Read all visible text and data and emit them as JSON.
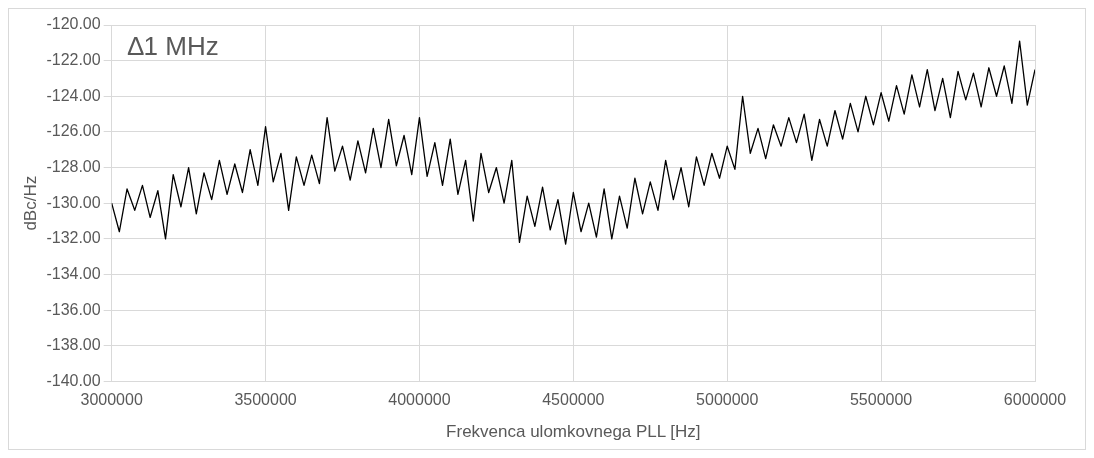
{
  "chart_data": {
    "type": "line",
    "xlabel": "Frekvenca ulomkovnega PLL [Hz]",
    "ylabel": "dBc/Hz",
    "annotations": [
      "∆1 MHz"
    ],
    "xlim": [
      3000000,
      6000000
    ],
    "xticks": [
      3000000,
      3500000,
      4000000,
      4500000,
      5000000,
      5500000,
      6000000
    ],
    "ylim": [
      -140,
      -120
    ],
    "yticks": [
      {
        "value": -140,
        "label": "-140.00"
      },
      {
        "value": -138,
        "label": "-138.00"
      },
      {
        "value": -136,
        "label": "-136.00"
      },
      {
        "value": -134,
        "label": "-134.00"
      },
      {
        "value": -132,
        "label": "-132.00"
      },
      {
        "value": -130,
        "label": "-130.00"
      },
      {
        "value": -128,
        "label": "-128.00"
      },
      {
        "value": -126,
        "label": "-126.00"
      },
      {
        "value": -124,
        "label": "-124.00"
      },
      {
        "value": -122,
        "label": "-122.00"
      },
      {
        "value": -120,
        "label": "-120.00"
      }
    ],
    "grid": true,
    "legend": false,
    "marker": "none",
    "line_style": "solid",
    "x": [
      3000000,
      3025000,
      3050000,
      3075000,
      3100000,
      3125000,
      3150000,
      3175000,
      3200000,
      3225000,
      3250000,
      3275000,
      3300000,
      3325000,
      3350000,
      3375000,
      3400000,
      3425000,
      3450000,
      3475000,
      3500000,
      3525000,
      3550000,
      3575000,
      3600000,
      3625000,
      3650000,
      3675000,
      3700000,
      3725000,
      3750000,
      3775000,
      3800000,
      3825000,
      3850000,
      3875000,
      3900000,
      3925000,
      3950000,
      3975000,
      4000000,
      4025000,
      4050000,
      4075000,
      4100000,
      4125000,
      4150000,
      4175000,
      4200000,
      4225000,
      4250000,
      4275000,
      4300000,
      4325000,
      4350000,
      4375000,
      4400000,
      4425000,
      4450000,
      4475000,
      4500000,
      4525000,
      4550000,
      4575000,
      4600000,
      4625000,
      4650000,
      4675000,
      4700000,
      4725000,
      4750000,
      4775000,
      4800000,
      4825000,
      4850000,
      4875000,
      4900000,
      4925000,
      4950000,
      4975000,
      5000000,
      5025000,
      5050000,
      5075000,
      5100000,
      5125000,
      5150000,
      5175000,
      5200000,
      5225000,
      5250000,
      5275000,
      5300000,
      5325000,
      5350000,
      5375000,
      5400000,
      5425000,
      5450000,
      5475000,
      5500000,
      5525000,
      5550000,
      5575000,
      5600000,
      5625000,
      5650000,
      5675000,
      5700000,
      5725000,
      5750000,
      5775000,
      5800000,
      5825000,
      5850000,
      5875000,
      5900000,
      5925000,
      5950000,
      5975000,
      6000000
    ],
    "series": [
      {
        "color": "#000000",
        "values": [
          -130.0,
          -131.6,
          -129.2,
          -130.4,
          -129.0,
          -130.8,
          -129.3,
          -132.0,
          -128.4,
          -130.2,
          -128.0,
          -130.6,
          -128.3,
          -129.8,
          -127.6,
          -129.5,
          -127.8,
          -129.4,
          -127.0,
          -129.0,
          -125.7,
          -128.8,
          -127.2,
          -130.4,
          -127.4,
          -129.0,
          -127.3,
          -128.9,
          -125.2,
          -128.2,
          -126.8,
          -128.7,
          -126.5,
          -128.3,
          -125.8,
          -128.0,
          -125.3,
          -127.9,
          -126.2,
          -128.4,
          -125.2,
          -128.5,
          -126.6,
          -129.0,
          -126.4,
          -129.5,
          -127.6,
          -131.0,
          -127.2,
          -129.4,
          -128.0,
          -130.0,
          -127.6,
          -132.2,
          -129.6,
          -131.3,
          -129.1,
          -131.5,
          -129.8,
          -132.3,
          -129.4,
          -131.6,
          -130.0,
          -131.9,
          -129.2,
          -132.0,
          -129.6,
          -131.4,
          -128.6,
          -130.6,
          -128.8,
          -130.4,
          -127.6,
          -129.8,
          -128.0,
          -130.2,
          -127.4,
          -129.0,
          -127.2,
          -128.6,
          -126.8,
          -128.1,
          -124.0,
          -127.2,
          -125.8,
          -127.5,
          -125.6,
          -126.8,
          -125.2,
          -126.6,
          -125.0,
          -127.6,
          -125.3,
          -126.8,
          -124.8,
          -126.4,
          -124.4,
          -126.0,
          -124.0,
          -125.6,
          -123.8,
          -125.4,
          -123.4,
          -125.0,
          -122.8,
          -124.6,
          -122.5,
          -124.8,
          -123.0,
          -125.2,
          -122.6,
          -124.2,
          -122.7,
          -124.6,
          -122.4,
          -124.0,
          -122.3,
          -124.4,
          -120.9,
          -124.5,
          -122.5
        ]
      }
    ]
  }
}
